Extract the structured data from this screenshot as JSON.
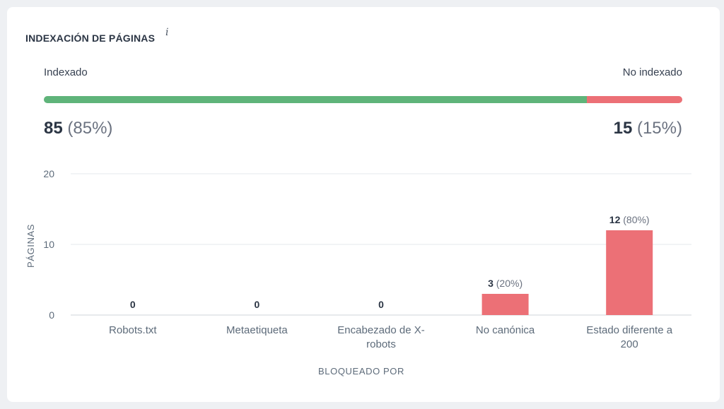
{
  "header": {
    "title": "INDEXACIÓN DE PÁGINAS",
    "info_icon": "i"
  },
  "summary": {
    "indexed_label": "Indexado",
    "not_indexed_label": "No indexado",
    "indexed_value": "85",
    "indexed_pct": "(85%)",
    "not_indexed_value": "15",
    "not_indexed_pct": "(15%)",
    "indexed_fraction": 0.85,
    "colors": {
      "indexed": "#5fb47a",
      "not_indexed": "#ec7076"
    }
  },
  "chart_data": {
    "type": "bar",
    "xlabel": "BLOQUEADO POR",
    "ylabel": "PÁGINAS",
    "ylim": [
      0,
      20
    ],
    "yticks": [
      0,
      10,
      20
    ],
    "grid": true,
    "categories": [
      [
        "Robots.txt"
      ],
      [
        "Metaetiqueta"
      ],
      [
        "Encabezado de X-",
        "robots"
      ],
      [
        "No canónica"
      ],
      [
        "Estado diferente a",
        "200"
      ]
    ],
    "values": [
      0,
      0,
      0,
      3,
      12
    ],
    "data_labels": [
      {
        "value": "0",
        "pct": ""
      },
      {
        "value": "0",
        "pct": ""
      },
      {
        "value": "0",
        "pct": ""
      },
      {
        "value": "3",
        "pct": "(20%)"
      },
      {
        "value": "12",
        "pct": "(80%)"
      }
    ],
    "bar_color": "#ec7076"
  }
}
